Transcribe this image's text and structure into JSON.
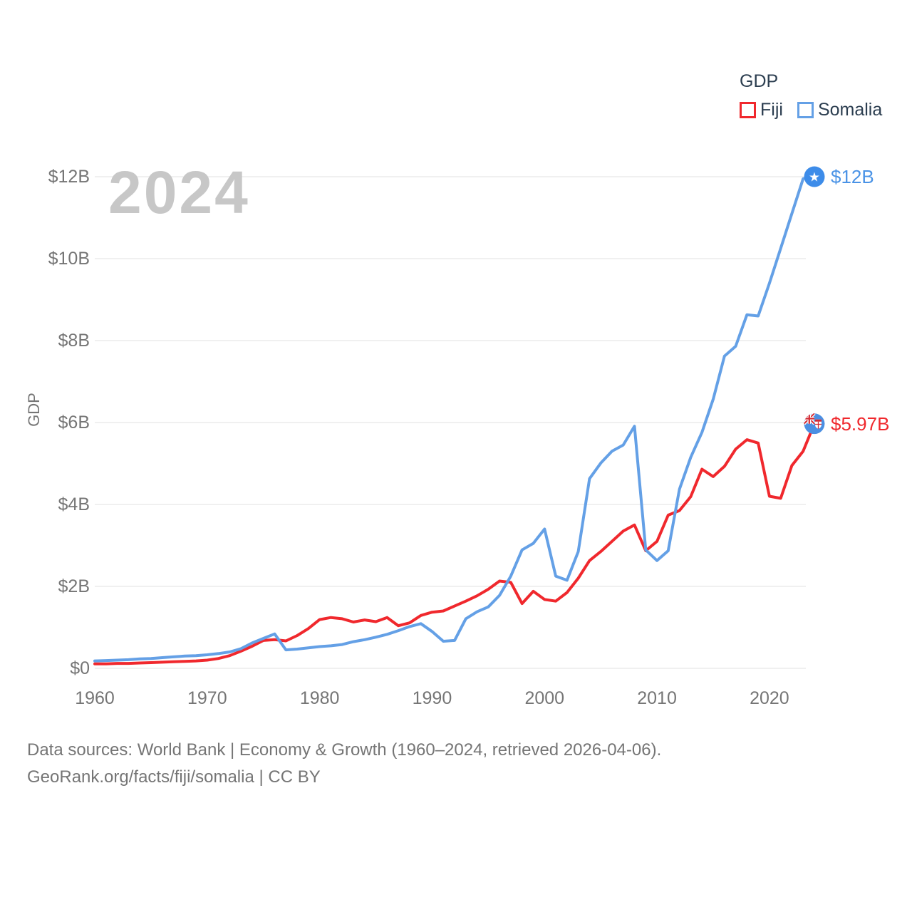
{
  "watermark": "2024",
  "legend": {
    "title": "GDP",
    "items": [
      {
        "label": "Fiji",
        "color": "#f0282d"
      },
      {
        "label": "Somalia",
        "color": "#64a0e6"
      }
    ]
  },
  "axis": {
    "y_title": "GDP"
  },
  "end_labels": [
    {
      "series": "Somalia",
      "text": "$12B",
      "color": "#4a93e6",
      "marker": "somalia-star-flag",
      "marker_color": "#3d8ce9"
    },
    {
      "series": "Fiji",
      "text": "$5.97B",
      "color": "#f0282d",
      "marker": "fiji-flag",
      "marker_color": "#4b8fe2"
    }
  ],
  "footer": {
    "line1": "Data sources: World Bank | Economy & Growth (1960–2024, retrieved 2026-04-06).",
    "line2": "GeoRank.org/facts/fiji/somalia | CC BY"
  },
  "chart_data": {
    "type": "line",
    "title": "GDP",
    "xlabel": "",
    "ylabel": "GDP",
    "xlim": [
      1960,
      2024
    ],
    "ylim": [
      0,
      12.7
    ],
    "grid": "horizontal",
    "grid_color": "#e8e8e8",
    "legend_position": "top-right",
    "tick_color": "#757575",
    "x": [
      1960,
      1961,
      1962,
      1963,
      1964,
      1965,
      1966,
      1967,
      1968,
      1969,
      1970,
      1971,
      1972,
      1973,
      1974,
      1975,
      1976,
      1977,
      1978,
      1979,
      1980,
      1981,
      1982,
      1983,
      1984,
      1985,
      1986,
      1987,
      1988,
      1989,
      1990,
      1991,
      1992,
      1993,
      1994,
      1995,
      1996,
      1997,
      1998,
      1999,
      2000,
      2001,
      2002,
      2003,
      2004,
      2005,
      2006,
      2007,
      2008,
      2009,
      2010,
      2011,
      2012,
      2013,
      2014,
      2015,
      2016,
      2017,
      2018,
      2019,
      2020,
      2021,
      2022,
      2023,
      2024
    ],
    "xticks": [
      1960,
      1970,
      1980,
      1990,
      2000,
      2010,
      2020
    ],
    "yticks": [
      {
        "value": 0,
        "label": "$0"
      },
      {
        "value": 2,
        "label": "$2B"
      },
      {
        "value": 4,
        "label": "$4B"
      },
      {
        "value": 6,
        "label": "$6B"
      },
      {
        "value": 8,
        "label": "$8B"
      },
      {
        "value": 10,
        "label": "$10B"
      },
      {
        "value": 12,
        "label": "$12B"
      }
    ],
    "unit": "USD billions",
    "series": [
      {
        "name": "Fiji",
        "color": "#f0282d",
        "values": [
          0.11,
          0.11,
          0.12,
          0.12,
          0.13,
          0.14,
          0.15,
          0.16,
          0.17,
          0.18,
          0.2,
          0.24,
          0.31,
          0.42,
          0.54,
          0.68,
          0.7,
          0.67,
          0.8,
          0.97,
          1.19,
          1.24,
          1.21,
          1.13,
          1.18,
          1.14,
          1.24,
          1.04,
          1.11,
          1.29,
          1.37,
          1.4,
          1.52,
          1.64,
          1.77,
          1.93,
          2.13,
          2.1,
          1.58,
          1.88,
          1.68,
          1.64,
          1.85,
          2.2,
          2.63,
          2.85,
          3.1,
          3.35,
          3.5,
          2.87,
          3.1,
          3.74,
          3.85,
          4.19,
          4.86,
          4.68,
          4.93,
          5.35,
          5.58,
          5.5,
          4.2,
          4.15,
          4.95,
          5.3,
          5.97
        ]
      },
      {
        "name": "Somalia",
        "color": "#64a0e6",
        "values": [
          0.18,
          0.19,
          0.2,
          0.21,
          0.23,
          0.24,
          0.26,
          0.28,
          0.3,
          0.31,
          0.33,
          0.36,
          0.4,
          0.48,
          0.62,
          0.73,
          0.84,
          0.45,
          0.47,
          0.5,
          0.53,
          0.55,
          0.58,
          0.65,
          0.7,
          0.76,
          0.83,
          0.92,
          1.02,
          1.09,
          0.9,
          0.66,
          0.68,
          1.21,
          1.38,
          1.5,
          1.78,
          2.25,
          2.89,
          3.05,
          3.4,
          2.25,
          2.15,
          2.85,
          4.63,
          5.01,
          5.3,
          5.45,
          5.91,
          2.89,
          2.63,
          2.87,
          4.37,
          5.15,
          5.76,
          6.57,
          7.62,
          7.86,
          8.63,
          8.6,
          9.4,
          10.25,
          11.1,
          11.95,
          12.0
        ]
      }
    ]
  }
}
